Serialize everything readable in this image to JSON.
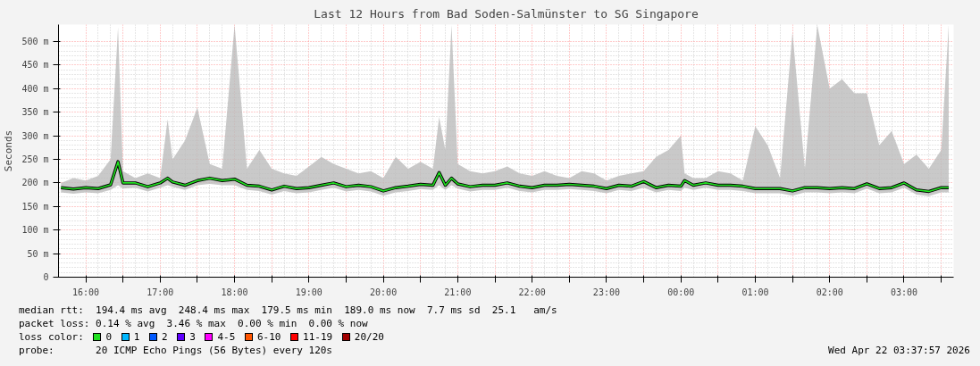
{
  "chart_data": {
    "type": "line",
    "title": "Last 12 Hours from Bad Soden-Salmünster to SG Singapore",
    "ylabel": "Seconds",
    "x": [
      "2026-04-21T15:40",
      "2026-04-21T15:50",
      "2026-04-21T16:00",
      "2026-04-21T16:10",
      "2026-04-21T16:20",
      "2026-04-21T16:26",
      "2026-04-21T16:30",
      "2026-04-21T16:40",
      "2026-04-21T16:50",
      "2026-04-21T17:00",
      "2026-04-21T17:06",
      "2026-04-21T17:10",
      "2026-04-21T17:20",
      "2026-04-21T17:30",
      "2026-04-21T17:40",
      "2026-04-21T17:50",
      "2026-04-21T18:00",
      "2026-04-21T18:10",
      "2026-04-21T18:20",
      "2026-04-21T18:30",
      "2026-04-21T18:40",
      "2026-04-21T18:50",
      "2026-04-21T19:00",
      "2026-04-21T19:10",
      "2026-04-21T19:20",
      "2026-04-21T19:30",
      "2026-04-21T19:40",
      "2026-04-21T19:50",
      "2026-04-21T20:00",
      "2026-04-21T20:10",
      "2026-04-21T20:20",
      "2026-04-21T20:30",
      "2026-04-21T20:40",
      "2026-04-21T20:45",
      "2026-04-21T20:50",
      "2026-04-21T20:55",
      "2026-04-21T21:00",
      "2026-04-21T21:10",
      "2026-04-21T21:20",
      "2026-04-21T21:30",
      "2026-04-21T21:40",
      "2026-04-21T21:50",
      "2026-04-21T22:00",
      "2026-04-21T22:10",
      "2026-04-21T22:20",
      "2026-04-21T22:30",
      "2026-04-21T22:40",
      "2026-04-21T22:50",
      "2026-04-21T23:00",
      "2026-04-21T23:10",
      "2026-04-21T23:20",
      "2026-04-21T23:30",
      "2026-04-21T23:40",
      "2026-04-21T23:50",
      "2026-04-22T00:00",
      "2026-04-22T00:03",
      "2026-04-22T00:10",
      "2026-04-22T00:20",
      "2026-04-22T00:30",
      "2026-04-22T00:40",
      "2026-04-22T00:50",
      "2026-04-22T01:00",
      "2026-04-22T01:10",
      "2026-04-22T01:20",
      "2026-04-22T01:30",
      "2026-04-22T01:40",
      "2026-04-22T01:50",
      "2026-04-22T02:00",
      "2026-04-22T02:10",
      "2026-04-22T02:20",
      "2026-04-22T02:30",
      "2026-04-22T02:40",
      "2026-04-22T02:50",
      "2026-04-22T03:00",
      "2026-04-22T03:10",
      "2026-04-22T03:20",
      "2026-04-22T03:30",
      "2026-04-22T03:36"
    ],
    "series": [
      {
        "name": "0",
        "color": "#20e020",
        "values": [
          190,
          187,
          190,
          188,
          196,
          245,
          200,
          200,
          192,
          200,
          210,
          202,
          195,
          205,
          210,
          205,
          208,
          195,
          193,
          185,
          193,
          188,
          190,
          195,
          200,
          192,
          195,
          192,
          183,
          190,
          193,
          197,
          195,
          222,
          195,
          210,
          198,
          192,
          195,
          195,
          200,
          193,
          190,
          195,
          195,
          197,
          195,
          193,
          188,
          195,
          193,
          203,
          190,
          195,
          193,
          205,
          195,
          200,
          195,
          195,
          193,
          188,
          188,
          188,
          183,
          190,
          190,
          188,
          190,
          188,
          198,
          188,
          190,
          200,
          185,
          182,
          190,
          190
        ],
        "lower": [
          180,
          177,
          180,
          178,
          185,
          195,
          188,
          190,
          182,
          190,
          195,
          192,
          185,
          195,
          198,
          195,
          195,
          185,
          183,
          175,
          183,
          178,
          180,
          185,
          190,
          182,
          185,
          182,
          173,
          180,
          183,
          187,
          185,
          195,
          185,
          195,
          188,
          182,
          185,
          185,
          190,
          183,
          180,
          185,
          185,
          187,
          185,
          183,
          178,
          185,
          183,
          190,
          180,
          185,
          183,
          190,
          185,
          190,
          185,
          185,
          183,
          178,
          178,
          178,
          173,
          180,
          180,
          178,
          180,
          178,
          188,
          178,
          180,
          190,
          175,
          172,
          180,
          180
        ],
        "upper": [
          200,
          210,
          205,
          215,
          250,
          530,
          225,
          210,
          220,
          210,
          335,
          250,
          290,
          360,
          240,
          230,
          535,
          230,
          270,
          230,
          220,
          215,
          235,
          255,
          240,
          230,
          220,
          225,
          210,
          255,
          230,
          245,
          230,
          340,
          270,
          535,
          240,
          225,
          220,
          225,
          235,
          220,
          215,
          225,
          215,
          210,
          225,
          220,
          205,
          215,
          220,
          225,
          255,
          270,
          300,
          220,
          210,
          210,
          225,
          220,
          205,
          320,
          280,
          210,
          520,
          230,
          535,
          400,
          420,
          390,
          390,
          280,
          310,
          240,
          260,
          230,
          270,
          535
        ]
      },
      {
        "name": "1",
        "color": "#00b8ff",
        "values": [
          null,
          null,
          null,
          null,
          null,
          null,
          null,
          null,
          null,
          null,
          null,
          null,
          null,
          null,
          null,
          null,
          null,
          null,
          null,
          null,
          null,
          null,
          null,
          null,
          null,
          null,
          null,
          null,
          null,
          null,
          null,
          null,
          null,
          null,
          null,
          null,
          null,
          null,
          null,
          null,
          null,
          null,
          null,
          null,
          null,
          null,
          null,
          null,
          null,
          null,
          null,
          null,
          null,
          null,
          null,
          null,
          null,
          null,
          null,
          null,
          null,
          null,
          null,
          null,
          null,
          null,
          null,
          null,
          null,
          null,
          null,
          null,
          null,
          null,
          null,
          null,
          null,
          null
        ]
      },
      {
        "name": "2",
        "color": "#0059ff",
        "values": [
          null,
          null,
          null,
          null,
          null,
          null,
          null,
          null,
          null,
          null,
          null,
          null,
          null,
          null,
          null,
          null,
          null,
          null,
          null,
          null,
          null,
          null,
          null,
          null,
          null,
          null,
          null,
          null,
          null,
          null,
          null,
          null,
          null,
          null,
          null,
          null,
          null,
          null,
          null,
          null,
          null,
          null,
          null,
          null,
          null,
          null,
          null,
          null,
          null,
          null,
          null,
          null,
          null,
          null,
          null,
          null,
          null,
          null,
          null,
          null,
          null,
          null,
          null,
          null,
          null,
          null,
          null,
          null,
          null,
          null,
          null,
          null,
          null,
          null,
          null,
          null,
          null,
          null
        ]
      },
      {
        "name": "3",
        "color": "#5e00ff",
        "values": [
          null,
          null,
          null,
          null,
          null,
          null,
          null,
          null,
          null,
          null,
          null,
          null,
          null,
          null,
          null,
          null,
          null,
          null,
          null,
          null,
          null,
          null,
          null,
          null,
          null,
          null,
          null,
          null,
          null,
          null,
          null,
          null,
          null,
          null,
          null,
          null,
          null,
          null,
          null,
          null,
          null,
          null,
          null,
          null,
          null,
          null,
          null,
          null,
          null,
          null,
          null,
          null,
          null,
          null,
          null,
          null,
          null,
          null,
          null,
          null,
          null,
          null,
          null,
          null,
          null,
          null,
          null,
          null,
          null,
          null,
          null,
          null,
          null,
          null,
          null,
          null,
          null,
          null
        ]
      },
      {
        "name": "4-5",
        "color": "#ff00ff",
        "values": [
          null,
          null,
          null,
          null,
          null,
          null,
          null,
          null,
          null,
          null,
          null,
          null,
          null,
          null,
          null,
          null,
          null,
          null,
          null,
          null,
          null,
          null,
          null,
          null,
          null,
          null,
          null,
          null,
          null,
          null,
          null,
          null,
          null,
          null,
          null,
          null,
          null,
          null,
          null,
          null,
          null,
          null,
          null,
          null,
          null,
          null,
          null,
          null,
          null,
          null,
          null,
          null,
          null,
          null,
          null,
          null,
          null,
          null,
          null,
          null,
          null,
          null,
          null,
          null,
          null,
          null,
          null,
          null,
          null,
          null,
          null,
          null,
          null,
          null,
          null,
          null,
          null,
          null
        ]
      },
      {
        "name": "6-10",
        "color": "#ff5500",
        "values": [
          null,
          null,
          null,
          null,
          null,
          null,
          null,
          null,
          null,
          null,
          null,
          null,
          null,
          null,
          null,
          null,
          null,
          null,
          null,
          null,
          null,
          null,
          null,
          null,
          null,
          null,
          null,
          null,
          null,
          null,
          null,
          null,
          null,
          null,
          null,
          null,
          null,
          null,
          null,
          null,
          null,
          null,
          null,
          null,
          null,
          null,
          null,
          null,
          null,
          null,
          null,
          null,
          null,
          null,
          null,
          null,
          null,
          null,
          null,
          null,
          null,
          null,
          null,
          null,
          null,
          null,
          null,
          null,
          null,
          null,
          null,
          null,
          null,
          null,
          null,
          null,
          null,
          null
        ]
      },
      {
        "name": "11-19",
        "color": "#ff0000",
        "values": [
          null,
          null,
          null,
          null,
          null,
          null,
          null,
          null,
          null,
          null,
          null,
          null,
          null,
          null,
          null,
          null,
          null,
          null,
          null,
          null,
          null,
          null,
          null,
          null,
          null,
          null,
          null,
          null,
          null,
          null,
          null,
          null,
          null,
          null,
          null,
          null,
          null,
          null,
          null,
          null,
          null,
          null,
          null,
          null,
          null,
          null,
          null,
          null,
          null,
          null,
          null,
          null,
          null,
          null,
          null,
          null,
          null,
          null,
          null,
          null,
          null,
          null,
          null,
          null,
          null,
          null,
          null,
          null,
          null,
          null,
          null,
          null,
          null,
          null,
          null,
          null,
          null,
          null
        ]
      },
      {
        "name": "20/20",
        "color": "#a10000",
        "values": [
          null,
          null,
          null,
          null,
          null,
          null,
          null,
          null,
          null,
          null,
          null,
          null,
          null,
          null,
          null,
          null,
          null,
          null,
          null,
          null,
          null,
          null,
          null,
          null,
          null,
          null,
          null,
          null,
          null,
          null,
          null,
          null,
          null,
          null,
          null,
          null,
          null,
          null,
          null,
          null,
          null,
          null,
          null,
          null,
          null,
          null,
          null,
          null,
          null,
          null,
          null,
          null,
          null,
          null,
          null,
          null,
          null,
          null,
          null,
          null,
          null,
          null,
          null,
          null,
          null,
          null,
          null,
          null,
          null,
          null,
          null,
          null,
          null,
          null,
          null,
          null,
          null,
          null
        ]
      }
    ],
    "legend_title": "loss color:",
    "legend": "bottom",
    "xlim": [
      "2026-04-21T15:38",
      "2026-04-22T03:40"
    ],
    "ylim": [
      0,
      536
    ],
    "xticks": [
      {
        "value": "2026-04-21T16:00",
        "label": "16:00"
      },
      {
        "value": "2026-04-21T16:30",
        "label": null
      },
      {
        "value": "2026-04-21T17:00",
        "label": "17:00"
      },
      {
        "value": "2026-04-21T17:30",
        "label": null
      },
      {
        "value": "2026-04-21T18:00",
        "label": "18:00"
      },
      {
        "value": "2026-04-21T18:30",
        "label": null
      },
      {
        "value": "2026-04-21T19:00",
        "label": "19:00"
      },
      {
        "value": "2026-04-21T19:30",
        "label": null
      },
      {
        "value": "2026-04-21T20:00",
        "label": "20:00"
      },
      {
        "value": "2026-04-21T20:30",
        "label": null
      },
      {
        "value": "2026-04-21T21:00",
        "label": "21:00"
      },
      {
        "value": "2026-04-21T21:30",
        "label": null
      },
      {
        "value": "2026-04-21T22:00",
        "label": "22:00"
      },
      {
        "value": "2026-04-21T22:30",
        "label": null
      },
      {
        "value": "2026-04-21T23:00",
        "label": "23:00"
      },
      {
        "value": "2026-04-21T23:30",
        "label": null
      },
      {
        "value": "2026-04-22T00:00",
        "label": "00:00"
      },
      {
        "value": "2026-04-22T00:30",
        "label": null
      },
      {
        "value": "2026-04-22T01:00",
        "label": "01:00"
      },
      {
        "value": "2026-04-22T01:30",
        "label": null
      },
      {
        "value": "2026-04-22T02:00",
        "label": "02:00"
      },
      {
        "value": "2026-04-22T02:30",
        "label": null
      },
      {
        "value": "2026-04-22T03:00",
        "label": "03:00"
      },
      {
        "value": "2026-04-22T03:30",
        "label": null
      }
    ],
    "yticks": [
      0,
      {
        "value": 50,
        "label": "50 m"
      },
      {
        "value": 100,
        "label": "100 m"
      },
      {
        "value": 150,
        "label": "150 m"
      },
      {
        "value": 200,
        "label": "200 m"
      },
      {
        "value": 250,
        "label": "250 m"
      },
      {
        "value": 300,
        "label": "300 m"
      },
      {
        "value": 350,
        "label": "350 m"
      },
      {
        "value": 400,
        "label": "400 m"
      },
      {
        "value": 450,
        "label": "450 m"
      },
      {
        "value": 500,
        "label": "500 m"
      }
    ],
    "grid": true,
    "marker": "none",
    "line_style": "solid",
    "annotations": [
      "median rtt:  194.4 ms avg  248.4 ms max  179.5 ms min  189.0 ms now  7.7 ms sd  25.1   am/s",
      "packet loss: 0.14 % avg  3.46 % max  0.00 % min  0.00 % now",
      "probe:       20 ICMP Echo Pings (56 Bytes) every 120s",
      "Wed Apr 22 03:37:57 2026"
    ]
  }
}
